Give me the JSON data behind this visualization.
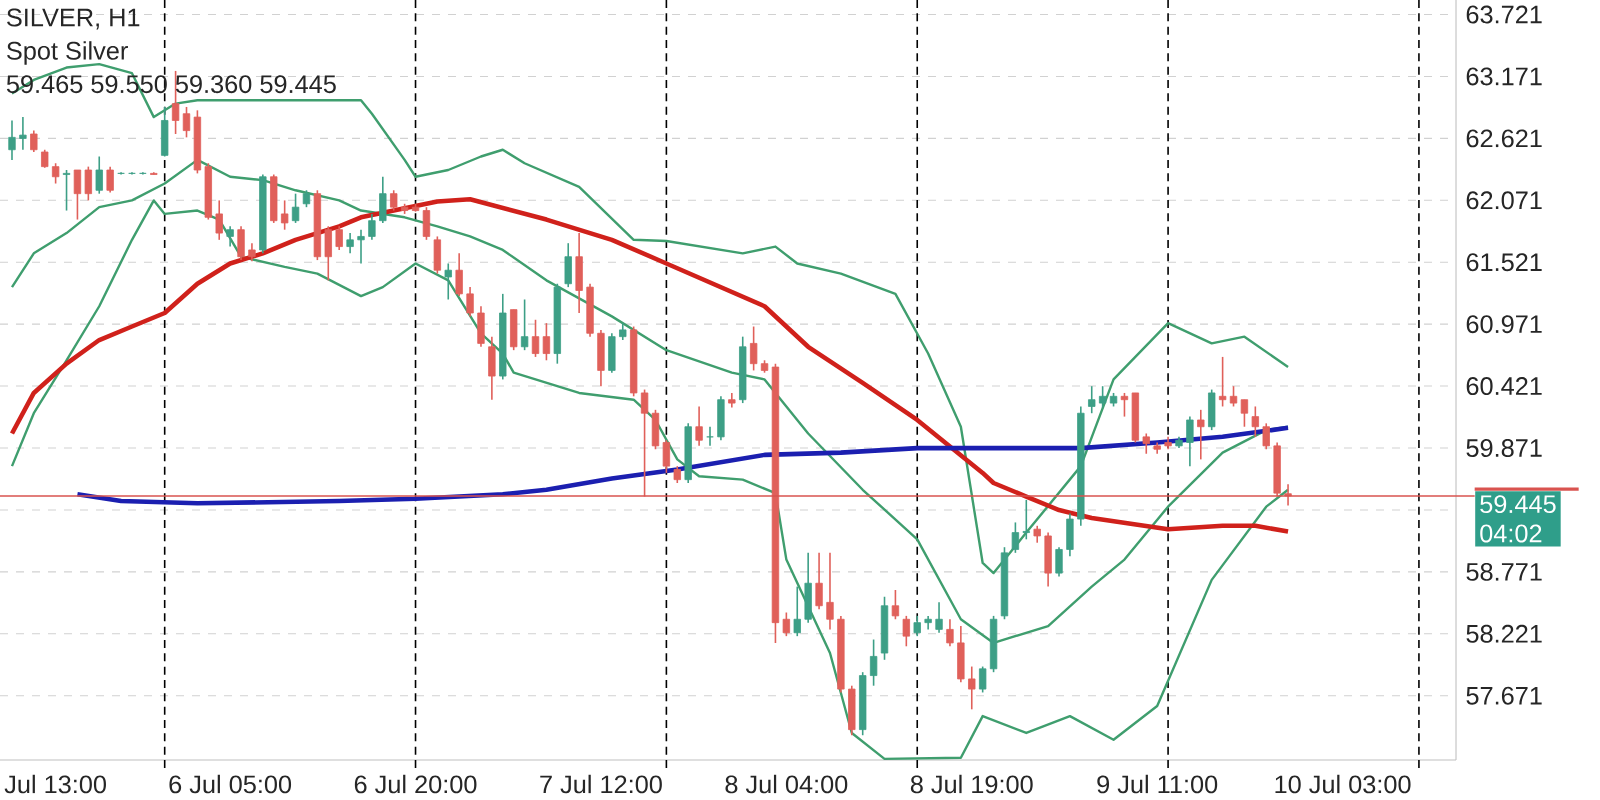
{
  "chart_data": {
    "type": "candlestick",
    "title": "SILVER, H1",
    "subtitle": "Spot Silver",
    "annotations": [
      "59.465 59.550 59.360 59.445",
      "04:02"
    ],
    "categories": [
      null,
      null,
      null,
      null,
      "Jul 13:00",
      null,
      null,
      null,
      null,
      null,
      null,
      null,
      null,
      null,
      null,
      null,
      null,
      null,
      null,
      null,
      "6 Jul 05:00",
      null,
      null,
      null,
      null,
      null,
      null,
      null,
      null,
      null,
      null,
      null,
      null,
      null,
      null,
      null,
      null,
      "6 Jul 20:00",
      null,
      null,
      null,
      null,
      null,
      null,
      null,
      null,
      null,
      null,
      null,
      null,
      null,
      null,
      null,
      null,
      "7 Jul 12:00",
      null,
      null,
      null,
      null,
      null,
      null,
      null,
      null,
      null,
      null,
      null,
      null,
      null,
      null,
      null,
      null,
      "8 Jul 04:00",
      null,
      null,
      null,
      null,
      null,
      null,
      null,
      null,
      null,
      null,
      null,
      null,
      null,
      null,
      null,
      null,
      "8 Jul 19:00",
      null,
      null,
      null,
      null,
      null,
      null,
      null,
      null,
      null,
      null,
      null,
      null,
      null,
      null,
      null,
      null,
      "9 Jul 11:00",
      null,
      null,
      null,
      null,
      null,
      null,
      null,
      null,
      null,
      null,
      null,
      null,
      null,
      null,
      null,
      null,
      "10 Jul 03:00",
      null,
      null,
      null,
      null,
      null,
      null,
      null,
      null,
      null,
      null
    ],
    "ohlc": [
      [
        62.52,
        62.78,
        62.43,
        62.63
      ],
      [
        62.62,
        62.81,
        62.52,
        62.65
      ],
      [
        62.66,
        62.69,
        62.5,
        62.52
      ],
      [
        62.5,
        62.52,
        62.36,
        62.37
      ],
      [
        62.37,
        62.4,
        62.22,
        62.28
      ],
      [
        62.3,
        62.34,
        61.98,
        62.31
      ],
      [
        62.34,
        62.34,
        61.9,
        62.13
      ],
      [
        62.34,
        62.37,
        62.07,
        62.13
      ],
      [
        62.16,
        62.46,
        62.13,
        62.34
      ],
      [
        62.34,
        62.37,
        62.14,
        62.16
      ],
      [
        62.31,
        62.32,
        62.3,
        62.31
      ],
      [
        62.31,
        62.32,
        62.3,
        62.31
      ],
      [
        62.31,
        62.32,
        62.3,
        62.31
      ],
      [
        62.31,
        62.32,
        62.3,
        62.3
      ],
      [
        62.47,
        62.9,
        62.46,
        62.78
      ],
      [
        62.93,
        63.22,
        62.66,
        62.78
      ],
      [
        62.84,
        62.9,
        62.63,
        62.69
      ],
      [
        62.81,
        62.87,
        62.31,
        62.34
      ],
      [
        62.37,
        62.4,
        61.9,
        61.92
      ],
      [
        61.95,
        62.07,
        61.72,
        61.78
      ],
      [
        61.75,
        61.84,
        61.66,
        61.81
      ],
      [
        61.81,
        61.84,
        61.54,
        61.57
      ],
      [
        61.63,
        61.69,
        61.53,
        61.57
      ],
      [
        61.63,
        62.3,
        61.6,
        62.28
      ],
      [
        62.28,
        62.3,
        61.87,
        61.89
      ],
      [
        61.95,
        62.07,
        61.81,
        61.87
      ],
      [
        61.89,
        62.13,
        61.87,
        62.01
      ],
      [
        62.04,
        62.16,
        62.01,
        62.13
      ],
      [
        62.13,
        62.16,
        61.54,
        61.57
      ],
      [
        61.81,
        61.84,
        61.36,
        61.57
      ],
      [
        61.81,
        61.84,
        61.63,
        61.66
      ],
      [
        61.66,
        61.78,
        61.6,
        61.72
      ],
      [
        61.72,
        61.81,
        61.51,
        61.75
      ],
      [
        61.75,
        61.95,
        61.72,
        61.89
      ],
      [
        61.89,
        62.28,
        61.87,
        62.13
      ],
      [
        62.13,
        62.16,
        61.98,
        62.01
      ],
      [
        62.01,
        62.04,
        61.95,
        61.98
      ],
      [
        62.01,
        62.04,
        61.97,
        61.98
      ],
      [
        61.98,
        62.01,
        61.72,
        61.75
      ],
      [
        61.72,
        61.75,
        61.42,
        61.45
      ],
      [
        61.39,
        61.51,
        61.19,
        61.45
      ],
      [
        61.45,
        61.6,
        61.22,
        61.24
      ],
      [
        61.24,
        61.3,
        61.04,
        61.07
      ],
      [
        61.07,
        61.13,
        60.77,
        60.8
      ],
      [
        60.77,
        60.86,
        60.3,
        60.51
      ],
      [
        60.51,
        61.24,
        60.48,
        61.07
      ],
      [
        61.1,
        61.1,
        60.74,
        60.77
      ],
      [
        60.77,
        61.19,
        60.74,
        60.86
      ],
      [
        60.86,
        61.01,
        60.68,
        60.71
      ],
      [
        60.86,
        60.98,
        60.65,
        60.71
      ],
      [
        60.71,
        61.33,
        60.62,
        61.3
      ],
      [
        61.33,
        61.69,
        61.3,
        61.57
      ],
      [
        61.57,
        61.78,
        61.07,
        61.27
      ],
      [
        61.3,
        61.33,
        60.86,
        60.89
      ],
      [
        60.89,
        60.92,
        60.42,
        60.56
      ],
      [
        60.56,
        60.89,
        60.54,
        60.86
      ],
      [
        60.86,
        60.98,
        60.83,
        60.92
      ],
      [
        60.92,
        60.95,
        60.33,
        60.36
      ],
      [
        60.36,
        60.39,
        59.44,
        60.18
      ],
      [
        60.18,
        60.21,
        59.86,
        59.89
      ],
      [
        59.92,
        59.94,
        59.65,
        59.71
      ],
      [
        59.68,
        59.71,
        59.56,
        59.59
      ],
      [
        59.59,
        60.09,
        59.56,
        60.06
      ],
      [
        60.06,
        60.24,
        59.89,
        59.94
      ],
      [
        59.97,
        60.06,
        59.89,
        59.97
      ],
      [
        59.97,
        60.33,
        59.94,
        60.3
      ],
      [
        60.3,
        60.36,
        60.23,
        60.27
      ],
      [
        60.3,
        60.86,
        60.27,
        60.77
      ],
      [
        60.8,
        60.95,
        60.56,
        60.62
      ],
      [
        60.62,
        60.65,
        60.54,
        60.56
      ],
      [
        60.59,
        60.62,
        58.14,
        58.32
      ],
      [
        58.35,
        58.41,
        58.2,
        58.23
      ],
      [
        58.23,
        58.64,
        58.2,
        58.35
      ],
      [
        58.35,
        58.94,
        58.32,
        58.67
      ],
      [
        58.67,
        58.94,
        58.44,
        58.47
      ],
      [
        58.5,
        58.94,
        58.26,
        58.35
      ],
      [
        58.35,
        58.38,
        57.7,
        57.73
      ],
      [
        57.73,
        57.76,
        57.32,
        57.37
      ],
      [
        57.37,
        57.88,
        57.32,
        57.85
      ],
      [
        57.85,
        58.17,
        57.76,
        58.02
      ],
      [
        58.05,
        58.55,
        57.99,
        58.47
      ],
      [
        58.47,
        58.61,
        58.35,
        58.38
      ],
      [
        58.35,
        58.38,
        58.11,
        58.2
      ],
      [
        58.23,
        58.38,
        58.2,
        58.32
      ],
      [
        58.32,
        58.38,
        58.26,
        58.35
      ],
      [
        58.26,
        58.5,
        58.23,
        58.35
      ],
      [
        58.26,
        58.35,
        58.11,
        58.14
      ],
      [
        58.14,
        58.29,
        57.79,
        57.82
      ],
      [
        57.82,
        57.93,
        57.55,
        57.73
      ],
      [
        57.73,
        57.93,
        57.7,
        57.91
      ],
      [
        57.91,
        58.38,
        57.88,
        58.35
      ],
      [
        58.38,
        58.99,
        58.35,
        58.94
      ],
      [
        58.97,
        59.21,
        58.94,
        59.12
      ],
      [
        59.12,
        59.41,
        59.06,
        59.13
      ],
      [
        59.15,
        59.18,
        59.03,
        59.09
      ],
      [
        59.09,
        59.12,
        58.64,
        58.76
      ],
      [
        58.76,
        58.99,
        58.73,
        58.97
      ],
      [
        58.97,
        59.29,
        58.91,
        59.24
      ],
      [
        59.24,
        60.24,
        59.18,
        60.18
      ],
      [
        60.24,
        60.42,
        60.18,
        60.3
      ],
      [
        60.27,
        60.42,
        60.23,
        60.33
      ],
      [
        60.27,
        60.36,
        60.24,
        60.33
      ],
      [
        60.33,
        60.36,
        60.15,
        60.3
      ],
      [
        60.36,
        60.36,
        59.92,
        59.94
      ],
      [
        59.97,
        60.0,
        59.82,
        59.91
      ],
      [
        59.89,
        59.92,
        59.82,
        59.86
      ],
      [
        59.92,
        59.97,
        59.86,
        59.89
      ],
      [
        59.89,
        59.97,
        59.87,
        59.94
      ],
      [
        59.92,
        60.15,
        59.71,
        60.12
      ],
      [
        60.12,
        60.21,
        59.77,
        60.06
      ],
      [
        60.06,
        60.39,
        60.03,
        60.36
      ],
      [
        60.33,
        60.68,
        60.24,
        60.3
      ],
      [
        60.33,
        60.42,
        60.24,
        60.27
      ],
      [
        60.3,
        60.3,
        60.06,
        60.18
      ],
      [
        60.15,
        60.24,
        59.97,
        60.06
      ],
      [
        60.06,
        60.09,
        59.86,
        59.89
      ],
      [
        59.89,
        59.92,
        59.44,
        59.47
      ],
      [
        59.465,
        59.55,
        59.36,
        59.445
      ],
      null,
      null,
      null,
      null,
      null,
      null,
      null,
      null,
      null,
      null,
      null,
      null,
      null,
      null,
      null
    ],
    "series": [
      {
        "type": "line",
        "color": "#3f9e6e",
        "values": [
          63.02,
          null,
          63.14,
          null,
          null,
          63.25,
          null,
          null,
          63.28,
          null,
          null,
          63.2,
          null,
          62.81,
          null,
          62.93,
          null,
          62.96,
          null,
          null,
          null,
          null,
          null,
          62.96,
          null,
          null,
          null,
          null,
          null,
          null,
          62.96,
          null,
          62.96,
          62.84,
          null,
          null,
          62.43,
          62.28,
          null,
          null,
          62.34,
          null,
          null,
          62.46,
          null,
          62.52,
          null,
          62.4,
          null,
          null,
          null,
          null,
          62.19,
          null,
          null,
          null,
          null,
          61.72,
          null,
          null,
          61.71,
          null,
          null,
          null,
          null,
          null,
          null,
          61.6,
          null,
          null,
          61.66,
          null,
          61.51,
          null,
          null,
          null,
          61.42,
          null,
          null,
          null,
          null,
          61.24,
          null,
          null,
          60.71,
          null,
          null,
          60.06,
          null,
          58.85,
          58.76,
          null,
          null,
          59.12,
          null,
          null,
          null,
          null,
          59.71,
          null,
          null,
          60.48,
          null,
          null,
          null,
          null,
          60.98,
          null,
          null,
          null,
          60.8,
          null,
          null,
          60.86,
          null,
          null,
          null,
          60.59,
          null,
          null,
          null,
          null,
          null,
          null,
          null,
          null,
          null,
          null,
          null,
          null,
          null,
          null,
          null
        ]
      },
      {
        "type": "line",
        "color": "#3f9e6e",
        "values": [
          61.3,
          null,
          61.6,
          null,
          null,
          61.78,
          null,
          null,
          62.01,
          null,
          null,
          62.07,
          null,
          null,
          62.22,
          null,
          null,
          62.43,
          null,
          null,
          62.28,
          null,
          null,
          62.25,
          null,
          null,
          62.16,
          null,
          null,
          null,
          62.07,
          null,
          61.98,
          null,
          null,
          null,
          61.92,
          null,
          null,
          61.84,
          null,
          null,
          61.75,
          null,
          null,
          61.63,
          null,
          null,
          null,
          61.36,
          null,
          null,
          null,
          null,
          null,
          61.04,
          null,
          null,
          null,
          null,
          60.74,
          null,
          null,
          null,
          null,
          null,
          60.54,
          null,
          null,
          60.48,
          null,
          null,
          null,
          60.0,
          null,
          null,
          null,
          null,
          59.5,
          null,
          null,
          null,
          null,
          59.06,
          null,
          null,
          null,
          58.35,
          null,
          null,
          58.14,
          null,
          null,
          null,
          null,
          58.29,
          null,
          null,
          null,
          58.64,
          null,
          null,
          58.88,
          null,
          null,
          null,
          59.35,
          null,
          null,
          null,
          null,
          59.83,
          null,
          null,
          null,
          60.03,
          null,
          60.06,
          null,
          null,
          null,
          null,
          null,
          null,
          null,
          null,
          null,
          null,
          null,
          null,
          null,
          null,
          null
        ]
      },
      {
        "type": "line",
        "color": "#3f9e6e",
        "values": [
          59.71,
          null,
          60.18,
          null,
          null,
          60.65,
          null,
          null,
          61.13,
          null,
          null,
          61.72,
          null,
          62.07,
          61.95,
          null,
          null,
          61.98,
          null,
          61.9,
          null,
          61.57,
          null,
          null,
          null,
          61.48,
          null,
          null,
          61.42,
          null,
          null,
          null,
          61.22,
          null,
          61.3,
          null,
          null,
          61.51,
          null,
          null,
          61.36,
          null,
          null,
          60.89,
          null,
          60.71,
          60.54,
          null,
          null,
          null,
          null,
          null,
          60.36,
          null,
          null,
          null,
          null,
          60.3,
          null,
          60.12,
          null,
          59.77,
          null,
          59.62,
          null,
          null,
          null,
          59.59,
          null,
          null,
          59.47,
          58.88,
          null,
          null,
          null,
          58.05,
          null,
          57.34,
          null,
          null,
          57.11,
          null,
          null,
          null,
          null,
          null,
          null,
          57.12,
          null,
          57.49,
          null,
          null,
          null,
          57.34,
          null,
          null,
          null,
          57.49,
          null,
          null,
          null,
          57.28,
          null,
          null,
          null,
          57.58,
          null,
          null,
          null,
          null,
          58.7,
          null,
          null,
          null,
          null,
          59.35,
          null,
          59.5,
          null,
          null,
          null,
          null,
          null,
          null,
          null,
          null,
          null,
          null,
          null,
          null,
          null,
          null,
          null
        ]
      },
      {
        "type": "line",
        "color": "#d0211b",
        "values": [
          60.0,
          null,
          60.36,
          null,
          null,
          60.62,
          null,
          null,
          60.83,
          null,
          null,
          60.95,
          null,
          null,
          61.07,
          null,
          null,
          61.33,
          null,
          null,
          61.51,
          null,
          null,
          61.6,
          null,
          null,
          61.72,
          null,
          null,
          null,
          61.84,
          null,
          61.92,
          null,
          null,
          null,
          62.0,
          null,
          null,
          62.06,
          null,
          null,
          62.08,
          null,
          null,
          null,
          null,
          null,
          null,
          61.9,
          null,
          null,
          null,
          null,
          null,
          61.72,
          null,
          null,
          null,
          null,
          61.51,
          null,
          null,
          null,
          null,
          null,
          null,
          null,
          null,
          61.13,
          null,
          null,
          null,
          60.77,
          null,
          null,
          null,
          null,
          60.45,
          null,
          null,
          null,
          null,
          60.12,
          null,
          null,
          null,
          null,
          null,
          59.65,
          59.56,
          null,
          null,
          59.44,
          null,
          null,
          59.32,
          null,
          null,
          59.25,
          null,
          null,
          null,
          null,
          null,
          null,
          59.15,
          null,
          null,
          null,
          null,
          59.18,
          null,
          null,
          59.18,
          null,
          null,
          59.13,
          null,
          null,
          null,
          null,
          null,
          null,
          null,
          null,
          null,
          null,
          null,
          null,
          null,
          null,
          null
        ]
      },
      {
        "type": "line",
        "color": "#1b1fb0",
        "values": [
          null,
          null,
          null,
          null,
          null,
          null,
          59.46,
          null,
          null,
          null,
          59.4,
          null,
          null,
          null,
          null,
          null,
          null,
          59.38,
          null,
          null,
          null,
          null,
          null,
          null,
          null,
          null,
          null,
          null,
          null,
          null,
          59.4,
          null,
          null,
          null,
          null,
          null,
          null,
          59.42,
          null,
          null,
          null,
          null,
          null,
          null,
          null,
          59.46,
          null,
          null,
          null,
          59.5,
          null,
          null,
          null,
          null,
          null,
          59.6,
          null,
          null,
          null,
          null,
          null,
          59.68,
          null,
          null,
          null,
          null,
          null,
          null,
          null,
          59.81,
          null,
          null,
          null,
          null,
          null,
          null,
          59.83,
          null,
          null,
          null,
          null,
          null,
          null,
          59.87,
          null,
          null,
          null,
          null,
          null,
          null,
          null,
          null,
          null,
          null,
          null,
          null,
          null,
          null,
          59.87,
          null,
          null,
          null,
          null,
          null,
          null,
          59.92,
          null,
          null,
          null,
          null,
          null,
          59.97,
          null,
          null,
          null,
          null,
          null,
          60.05,
          null,
          null,
          null,
          null,
          null,
          null,
          null,
          null,
          null,
          null,
          null,
          null,
          null,
          null,
          null
        ]
      }
    ],
    "ylim": [
      57.1,
      63.85
    ],
    "yticks": [
      57.671,
      58.221,
      58.771,
      {
        "value": 59.321,
        "label": null
      },
      59.871,
      60.421,
      60.971,
      61.521,
      62.071,
      62.621,
      63.171,
      63.721
    ],
    "grid": "y",
    "ref_lines": [
      {
        "axis": "y",
        "value": 59.445,
        "label": "59.445",
        "color": "#d9534f"
      }
    ]
  }
}
